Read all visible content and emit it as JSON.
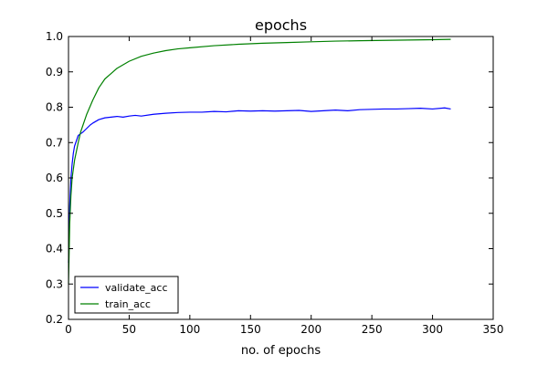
{
  "chart_data": {
    "type": "line",
    "title": "epochs",
    "xlabel": "no. of epochs",
    "ylabel": "",
    "xlim": [
      0,
      350
    ],
    "ylim": [
      0.2,
      1.0
    ],
    "xticks": [
      0,
      50,
      100,
      150,
      200,
      250,
      300,
      350
    ],
    "yticks": [
      0.2,
      0.3,
      0.4,
      0.5,
      0.6,
      0.7,
      0.8,
      0.9,
      1.0
    ],
    "xtick_labels": [
      "0",
      "50",
      "100",
      "150",
      "200",
      "250",
      "300",
      "350"
    ],
    "ytick_labels": [
      "0.2",
      "0.3",
      "0.4",
      "0.5",
      "0.6",
      "0.7",
      "0.8",
      "0.9",
      "1.0"
    ],
    "grid": false,
    "legend_position": "lower-left",
    "series": [
      {
        "name": "validate_acc",
        "color": "#0000ff",
        "x": [
          0,
          1,
          2,
          3,
          4,
          5,
          6,
          7,
          8,
          10,
          12,
          15,
          18,
          20,
          25,
          30,
          35,
          40,
          45,
          50,
          55,
          60,
          70,
          80,
          90,
          100,
          110,
          120,
          130,
          140,
          150,
          160,
          170,
          180,
          190,
          200,
          210,
          220,
          230,
          240,
          250,
          260,
          270,
          280,
          290,
          300,
          310,
          315
        ],
        "y": [
          0.36,
          0.52,
          0.6,
          0.64,
          0.67,
          0.69,
          0.7,
          0.71,
          0.72,
          0.725,
          0.73,
          0.74,
          0.75,
          0.755,
          0.765,
          0.77,
          0.772,
          0.774,
          0.772,
          0.775,
          0.777,
          0.775,
          0.78,
          0.783,
          0.785,
          0.786,
          0.786,
          0.788,
          0.787,
          0.79,
          0.789,
          0.79,
          0.789,
          0.79,
          0.791,
          0.788,
          0.79,
          0.792,
          0.79,
          0.793,
          0.794,
          0.795,
          0.795,
          0.796,
          0.797,
          0.795,
          0.798,
          0.795
        ]
      },
      {
        "name": "train_acc",
        "color": "#008000",
        "x": [
          0,
          1,
          2,
          3,
          5,
          8,
          10,
          15,
          20,
          25,
          30,
          35,
          40,
          50,
          60,
          70,
          80,
          90,
          100,
          120,
          140,
          160,
          180,
          200,
          220,
          240,
          260,
          280,
          300,
          315
        ],
        "y": [
          0.3,
          0.47,
          0.55,
          0.6,
          0.65,
          0.7,
          0.73,
          0.78,
          0.82,
          0.855,
          0.88,
          0.895,
          0.91,
          0.93,
          0.944,
          0.953,
          0.96,
          0.965,
          0.968,
          0.974,
          0.978,
          0.981,
          0.983,
          0.985,
          0.987,
          0.988,
          0.989,
          0.99,
          0.991,
          0.992
        ]
      }
    ]
  }
}
